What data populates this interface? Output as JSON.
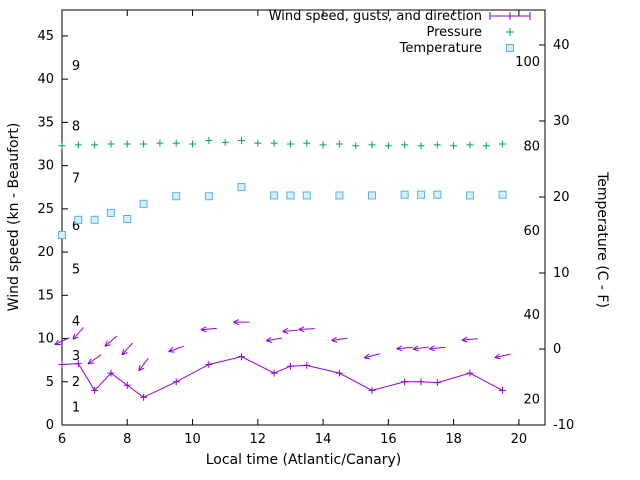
{
  "legend": [
    {
      "label": "Wind speed, gusts, and direction",
      "series": "wind",
      "marker": "errorline-plus",
      "color": "#9400d3"
    },
    {
      "label": "Pressure",
      "series": "pressure",
      "marker": "plus",
      "color": "#009e73"
    },
    {
      "label": "Temperature",
      "series": "temperature",
      "marker": "square",
      "color": "#56b4e9"
    }
  ],
  "chart_data": {
    "type": "line",
    "title": "",
    "xlabel": "Local time (Atlantic/Canary)",
    "ylabel": "Wind speed (kn - Beaufort)",
    "y2label": "Temperature (C - F)",
    "x_range": [
      6,
      20.8
    ],
    "x_ticks": [
      6,
      8,
      10,
      12,
      14,
      16,
      18,
      20
    ],
    "y_left_range": [
      0,
      48
    ],
    "y_left_ticks": [
      0,
      5,
      10,
      15,
      20,
      25,
      30,
      35,
      40,
      45
    ],
    "y_right_range": [
      -10,
      44.6
    ],
    "y_right_ticks": [
      -10,
      0,
      10,
      20,
      30,
      40
    ],
    "grid": false,
    "legend_position": "top-right-inside",
    "beaufort_labels": [
      {
        "label": "1",
        "kn": 2
      },
      {
        "label": "2",
        "kn": 5
      },
      {
        "label": "3",
        "kn": 8
      },
      {
        "label": "4",
        "kn": 12
      },
      {
        "label": "5",
        "kn": 18
      },
      {
        "label": "6",
        "kn": 23
      },
      {
        "label": "7",
        "kn": 28.5
      },
      {
        "label": "8",
        "kn": 34.5
      },
      {
        "label": "9",
        "kn": 41.5
      }
    ],
    "fahrenheit_labels": [
      {
        "label": "20",
        "f": 20
      },
      {
        "label": "40",
        "f": 40
      },
      {
        "label": "60",
        "f": 60
      },
      {
        "label": "80",
        "f": 80
      },
      {
        "label": "100",
        "f": 100
      }
    ],
    "series": {
      "wind": {
        "x": [
          6,
          6.5,
          7,
          7.5,
          8,
          8.5,
          9.5,
          10.5,
          11.5,
          12.5,
          13,
          13.5,
          14.5,
          15.5,
          16.5,
          17,
          17.5,
          18.5,
          19.5
        ],
        "speed_kn": [
          7,
          7.1,
          4,
          6,
          4.6,
          3.2,
          5,
          7,
          7.9,
          6,
          6.8,
          6.9,
          6,
          4,
          5,
          5,
          4.9,
          6,
          4
        ],
        "gust_kn": [
          9.7,
          10.6,
          7.6,
          9.7,
          8.8,
          7.0,
          8.8,
          11.1,
          11.9,
          9.9,
          10.9,
          11.1,
          9.9,
          8.0,
          8.9,
          8.9,
          8.9,
          9.9,
          8.0
        ],
        "dir_deg_screen": [
          205,
          228,
          215,
          220,
          228,
          233,
          200,
          185,
          180,
          190,
          185,
          183,
          188,
          195,
          185,
          188,
          185,
          185,
          192
        ]
      },
      "pressure": {
        "x": [
          6,
          6.5,
          7,
          7.5,
          8,
          8.5,
          9,
          9.5,
          10,
          10.5,
          11,
          11.5,
          12,
          12.5,
          13,
          13.5,
          14,
          14.5,
          15,
          15.5,
          16,
          16.5,
          17,
          17.5,
          18,
          18.5,
          19,
          19.5
        ],
        "value_left_axis_units": [
          32.3,
          32.4,
          32.4,
          32.5,
          32.5,
          32.5,
          32.6,
          32.6,
          32.5,
          32.9,
          32.7,
          32.9,
          32.6,
          32.6,
          32.5,
          32.6,
          32.4,
          32.5,
          32.3,
          32.4,
          32.3,
          32.4,
          32.3,
          32.4,
          32.3,
          32.4,
          32.3,
          32.5
        ]
      },
      "temperature": {
        "x": [
          6,
          6.5,
          7,
          7.5,
          8,
          8.5,
          9.5,
          10.5,
          11.5,
          12.5,
          13,
          13.5,
          14.5,
          15.5,
          16.5,
          17,
          17.5,
          18.5,
          19.5
        ],
        "c": [
          15.0,
          17.0,
          17.0,
          17.9,
          17.1,
          19.1,
          20.1,
          20.1,
          21.3,
          20.2,
          20.2,
          20.2,
          20.2,
          20.2,
          20.3,
          20.3,
          20.3,
          20.2,
          20.3
        ]
      }
    }
  }
}
